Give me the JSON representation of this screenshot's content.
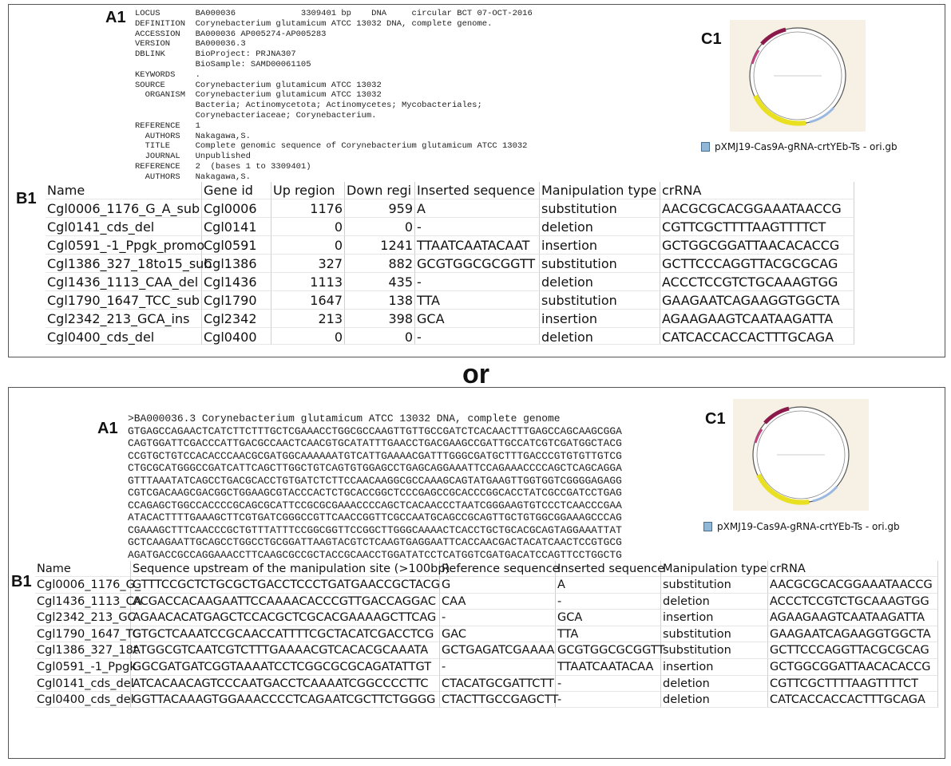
{
  "separator": "or",
  "panel1": {
    "label_a": "A1",
    "label_b": "B1",
    "label_c": "C1",
    "file_name": "pXMJ19-Cas9A-gRNA-crtYEb-Ts - ori.gb",
    "text_lines": [
      "LOCUS       BA000036             3309401 bp    DNA     circular BCT 07-OCT-2016",
      "DEFINITION  Corynebacterium glutamicum ATCC 13032 DNA, complete genome.",
      "ACCESSION   BA000036 AP005274-AP005283",
      "VERSION     BA000036.3",
      "DBLINK      BioProject: PRJNA307",
      "            BioSample: SAMD00061105",
      "KEYWORDS    .",
      "SOURCE      Corynebacterium glutamicum ATCC 13032",
      "  ORGANISM  Corynebacterium glutamicum ATCC 13032",
      "            Bacteria; Actinomycetota; Actinomycetes; Mycobacteriales;",
      "            Corynebacteriaceae; Corynebacterium.",
      "REFERENCE   1",
      "  AUTHORS   Nakagawa,S.",
      "  TITLE     Complete genomic sequence of Corynebacterium glutamicum ATCC 13032",
      "  JOURNAL   Unpublished",
      "REFERENCE   2  (bases 1 to 3309401)",
      "  AUTHORS   Nakagawa,S."
    ],
    "table": {
      "header": [
        "Name",
        "Gene id",
        "Up region",
        "Down regi",
        "Inserted sequence",
        "Manipulation type",
        "crRNA"
      ],
      "rows": [
        [
          "Cgl0006_1176_G_A_sub",
          "Cgl0006",
          1176,
          959,
          "A",
          "substitution",
          "AACGCGCACGGAAATAACCG"
        ],
        [
          "Cgl0141_cds_del",
          "Cgl0141",
          0,
          0,
          "-",
          "deletion",
          "CGTTCGCTTTTAAGTTTTCT"
        ],
        [
          "Cgl0591_-1_Ppgk_promo",
          "Cgl0591",
          0,
          1241,
          "TTAATCAATACAAT",
          "insertion",
          "GCTGGCGGATTAACACACCG"
        ],
        [
          "Cgl1386_327_18to15_sub",
          "Cgl1386",
          327,
          882,
          "GCGTGGCGCGGTT",
          "substitution",
          "GCTTCCCAGGTTACGCGCAG"
        ],
        [
          "Cgl1436_1113_CAA_del",
          "Cgl1436",
          1113,
          435,
          "-",
          "deletion",
          "ACCCTCCGTCTGCAAAGTGG"
        ],
        [
          "Cgl1790_1647_TCC_sub",
          "Cgl1790",
          1647,
          138,
          "TTA",
          "substitution",
          "GAAGAATCAGAAGGTGGCTA"
        ],
        [
          "Cgl2342_213_GCA_ins",
          "Cgl2342",
          213,
          398,
          "GCA",
          "insertion",
          "AGAAGAAGTCAATAAGATTA"
        ],
        [
          "Cgl0400_cds_del",
          "Cgl0400",
          0,
          0,
          "-",
          "deletion",
          "CATCACCACCACTTTGCAGA"
        ]
      ]
    }
  },
  "panel2": {
    "label_a": "A1",
    "label_b": "B1",
    "label_c": "C1",
    "file_name": "pXMJ19-Cas9A-gRNA-crtYEb-Ts - ori.gb",
    "text_lines": [
      ">BA000036.3 Corynebacterium glutamicum ATCC 13032 DNA, complete genome",
      "GTGAGCCAGAACTCATCTTCTTTGCTCGAAACCTGGCGCCAAGTTGTTGCCGATCTCACAACTTTGAGCCAGCAAGCGGA",
      "CAGTGGATTCGACCCATTGACGCCAACTCAACGTGCATATTTGAACCTGACGAAGCCGATTGCCATCGTCGATGGCTACG",
      "CCGTGCTGTCCACACCCAACGCGATGGCAAAAAATGTCATTGAAAACGATTTGGGCGATGCTTTGACCCGTGTGTTGTCG",
      "CTGCGCATGGGCCGATCATTCAGCTTGGCTGTCAGTGTGGAGCCTGAGCAGGAAATTCCAGAAACCCCAGCTCAGCAGGA",
      "GTTTAAATATCAGCCTGACGCACCTGTGATCTCTTCCAACAAGGCGCCAAAGCAGTATGAAGTTGGTGGTCGGGGAGAGG",
      "CGTCGACAAGCGACGGCTGGAAGCGTACCCACTCTGCACCGGCTCCCGAGCCGCACCCGGCACCTATCGCCGATCCTGAG",
      "CCAGAGCTGGCCACCCCGCAGCGCATTCCGCGCGAAACCCCAGCTCACAACCCTAATCGGGAAGTGTCCCTCAACCCGAA",
      "ATACACTTTTGAAAGCTTCGTGATCGGGCCGTTCAACCGGTTCGCCAATGCAGCCGCAGTTGCTGTGGCGGAAAGCCCAG",
      "CGAAAGCTTTCAACCCGCTGTTTATTTCCGGCGGTTCCGGCTTGGGCAAAACTCACCTGCTGCACGCAGTAGGAAATTAT",
      "GCTCAAGAATTGCAGCCTGGCCTGCGGATTAAGTACGTCTCAAGTGAGGAATTCACCAACGACTACATCAACTCCGTGCG",
      "AGATGACCGCCAGGAAACCTTCAAGCGCCGCTACCGCAACCTGGATATCCTCATGGTCGATGACATCCAGTTCCTGGCTG"
    ],
    "table": {
      "header": [
        "Name",
        "Sequence upstream of the manipulation site (>100bp)",
        "Reference sequence",
        "Inserted sequence",
        "Manipulation type",
        "crRNA"
      ],
      "rows": [
        [
          "Cgl0006_1176_G_",
          "GTTTCCGCTCTGCGCTGACCTCCCTGATGAACCGCTACG",
          "G",
          "A",
          "substitution",
          "AACGCGCACGGAAATAACCG"
        ],
        [
          "Cgl1436_1113_CA",
          "ACGACCACAAGAATTCCAAAACACCCGTTGACCAGGAC",
          "CAA",
          "-",
          "deletion",
          "ACCCTCCGTCTGCAAAGTGG"
        ],
        [
          "Cgl2342_213_GC",
          "AGAACACATGAGCTCCACGCTCGCACGAAAAGCTTCAG",
          "-",
          "GCA",
          "insertion",
          "AGAAGAAGTCAATAAGATTA"
        ],
        [
          "Cgl1790_1647_TC",
          "GTGCTCAAATCCGCAACCATTTTCGCTACATCGACCTCG",
          "GAC",
          "TTA",
          "substitution",
          "GAAGAATCAGAAGGTGGCTA"
        ],
        [
          "Cgl1386_327_18t",
          "ATGGCGTCAATCGTCTTTGAAAACGTCACACGCAAATA",
          "GCTGAGATCGAAAA",
          "GCGTGGCGCGGTT",
          "substitution",
          "GCTTCCCAGGTTACGCGCAG"
        ],
        [
          "Cgl0591_-1_Ppgk",
          "GGCGATGATCGGTAAAATCCTCGGCGCGCAGATATTGT",
          "-",
          "TTAATCAATACAA",
          "insertion",
          "GCTGGCGGATTAACACACCG"
        ],
        [
          "Cgl0141_cds_del",
          "ATCACAACAGTCCCAATGACCTCAAAATCGGCCCCTTC",
          "CTACATGCGATTCTT",
          "-",
          "deletion",
          "CGTTCGCTTTTAAGTTTTCT"
        ],
        [
          "Cgl0400_cds_del",
          "GGTTACAAAGTGGAAACCCCTCAGAATCGCTTCTGGGG",
          "CTACTTGCCGAGCTT",
          "-",
          "deletion",
          "CATCACCACCACTTTGCAGA"
        ]
      ]
    }
  }
}
